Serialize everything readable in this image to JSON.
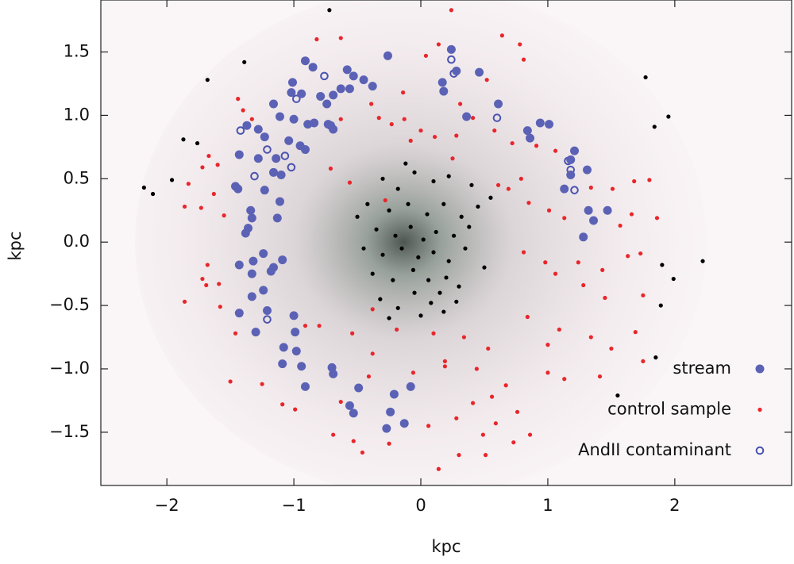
{
  "chart_data": {
    "type": "scatter",
    "xlabel": "kpc",
    "ylabel": "kpc",
    "xlim": [
      -2.52,
      2.92
    ],
    "ylim": [
      -1.92,
      1.91
    ],
    "xticks": [
      {
        "value": -2,
        "label": "−2"
      },
      {
        "value": -1,
        "label": "−1"
      },
      0,
      1,
      2
    ],
    "yticks": [
      {
        "value": -1.5,
        "label": "−1.5"
      },
      {
        "value": -1.0,
        "label": "−1.0"
      },
      {
        "value": -0.5,
        "label": "−0.5"
      },
      {
        "value": 0.0,
        "label": "0.0"
      },
      0.5,
      {
        "value": 1.0,
        "label": "1.0"
      },
      1.5
    ],
    "legend": "lower right",
    "series": [
      {
        "name": "stream",
        "color": "#5b62b5",
        "marker": "circle",
        "x": [
          -0.26,
          -0.91,
          -0.85,
          -0.58,
          -0.53,
          -0.45,
          -0.38,
          -1.01,
          0.17,
          0.18,
          -1.02,
          -0.94,
          -0.79,
          -0.74,
          -0.63,
          -0.56,
          -0.69,
          -1.16,
          -1.11,
          -1.0,
          -0.89,
          -0.84,
          -0.73,
          -0.71,
          -0.69,
          -1.37,
          -1.28,
          -1.23,
          -1.04,
          -0.95,
          -0.91,
          -1.43,
          -1.28,
          -1.14,
          -1.1,
          -1.16,
          -1.46,
          -1.44,
          -1.23,
          -1.11,
          -1.34,
          -1.33,
          -1.13,
          -1.36,
          -1.38,
          -1.24,
          -1.32,
          -1.43,
          -1.09,
          -1.16,
          -1.18,
          -1.33,
          -1.24,
          -1.33,
          -1.21,
          -1.43,
          -1.3,
          -1.0,
          -0.99,
          -1.08,
          -0.98,
          -1.09,
          -0.94,
          -0.7,
          -0.69,
          -0.91,
          -0.49,
          -0.56,
          -0.53,
          -0.21,
          -0.08,
          -0.24,
          -0.13,
          -0.27,
          0.24,
          0.28,
          0.46,
          0.61,
          0.36,
          0.84,
          0.94,
          1.01,
          0.86,
          1.21,
          1.18,
          1.18,
          1.31,
          1.13,
          1.32,
          1.36,
          1.28,
          1.47
        ],
        "y": [
          1.47,
          1.43,
          1.38,
          1.36,
          1.31,
          1.28,
          1.23,
          1.26,
          1.26,
          1.19,
          1.18,
          1.17,
          1.15,
          1.09,
          1.21,
          1.21,
          1.16,
          1.09,
          0.99,
          0.97,
          0.93,
          0.94,
          0.93,
          0.92,
          0.89,
          0.92,
          0.89,
          0.83,
          0.8,
          0.76,
          0.73,
          0.69,
          0.66,
          0.66,
          0.53,
          0.55,
          0.44,
          0.42,
          0.41,
          0.32,
          0.25,
          0.19,
          0.19,
          0.11,
          0.07,
          -0.09,
          -0.15,
          -0.18,
          -0.14,
          -0.2,
          -0.23,
          -0.25,
          -0.38,
          -0.43,
          -0.54,
          -0.56,
          -0.71,
          -0.58,
          -0.71,
          -0.83,
          -0.86,
          -0.96,
          -0.98,
          -0.99,
          -1.04,
          -1.14,
          -1.15,
          -1.29,
          -1.35,
          -1.2,
          -1.14,
          -1.34,
          -1.43,
          -1.47,
          1.52,
          1.35,
          1.34,
          1.09,
          0.99,
          0.88,
          0.94,
          0.93,
          0.82,
          0.72,
          0.65,
          0.53,
          0.57,
          0.42,
          0.25,
          0.17,
          0.04,
          0.25
        ]
      },
      {
        "name": "control sample",
        "color": "#e8262b",
        "marker": "dot",
        "x": [
          0.24,
          0.64,
          -0.82,
          -0.63,
          0.78,
          0.81,
          0.04,
          0.14,
          0.52,
          -0.39,
          -0.14,
          0.41,
          -1.44,
          -1.4,
          -0.33,
          -0.23,
          -0.13,
          0.0,
          -0.08,
          0.11,
          0.28,
          0.58,
          0.72,
          0.91,
          1.06,
          -1.67,
          -1.6,
          -1.72,
          -1.83,
          -1.63,
          -0.71,
          -0.56,
          -0.28,
          0.25,
          0.61,
          0.69,
          0.79,
          1.34,
          1.51,
          1.68,
          1.8,
          -1.86,
          -1.73,
          -1.55,
          0.85,
          1.01,
          1.13,
          1.57,
          1.66,
          1.86,
          -1.68,
          -1.72,
          -1.59,
          0.81,
          0.98,
          1.06,
          1.24,
          1.43,
          1.63,
          1.73,
          1.28,
          1.45,
          1.75,
          -1.86,
          -1.58,
          -1.46,
          -0.91,
          -0.8,
          -0.54,
          -0.38,
          -0.19,
          0.1,
          0.34,
          0.53,
          0.84,
          1.09,
          1.0,
          1.34,
          1.5,
          1.69,
          1.75,
          -1.5,
          -1.25,
          -1.09,
          -0.99,
          -0.63,
          -0.41,
          -0.06,
          0.19,
          0.56,
          0.76,
          1.0,
          1.13,
          1.41,
          -0.69,
          -0.53,
          -0.46,
          -0.25,
          0.14,
          0.3,
          0.49,
          0.51,
          0.59,
          0.73,
          0.86,
          0.41,
          0.28,
          0.06,
          -0.38,
          0.19,
          0.44,
          0.67,
          -1.69,
          -1.33,
          -0.63,
          0.31
        ],
        "y": [
          1.83,
          1.63,
          1.6,
          1.61,
          1.56,
          1.44,
          1.47,
          1.56,
          1.28,
          1.09,
          1.18,
          0.98,
          1.13,
          1.04,
          0.98,
          0.93,
          0.97,
          0.88,
          0.8,
          0.83,
          0.84,
          0.88,
          0.78,
          0.76,
          0.72,
          0.68,
          0.61,
          0.59,
          0.46,
          0.38,
          0.58,
          0.47,
          0.33,
          0.66,
          0.45,
          0.42,
          0.5,
          0.43,
          0.42,
          0.48,
          0.49,
          0.28,
          0.27,
          0.21,
          0.31,
          0.25,
          0.19,
          0.13,
          0.22,
          0.19,
          -0.18,
          -0.29,
          -0.33,
          -0.08,
          -0.16,
          -0.25,
          -0.16,
          -0.22,
          -0.11,
          -0.09,
          -0.34,
          -0.44,
          -0.42,
          -0.47,
          -0.51,
          -0.72,
          -0.66,
          -0.66,
          -0.72,
          -0.53,
          -0.69,
          -0.72,
          -0.75,
          -0.84,
          -0.59,
          -0.69,
          -0.81,
          -0.75,
          -0.84,
          -0.71,
          -0.94,
          -1.1,
          -1.12,
          -1.28,
          -1.32,
          -1.26,
          -1.06,
          -1.03,
          -0.98,
          -1.22,
          -1.34,
          -1.03,
          -1.08,
          -1.06,
          -1.52,
          -1.57,
          -1.66,
          -1.59,
          -1.79,
          -1.68,
          -1.52,
          -1.68,
          -1.43,
          -1.58,
          -1.52,
          -1.27,
          -1.39,
          -1.45,
          -0.88,
          -0.94,
          -1.0,
          -1.13,
          -0.34,
          0.97,
          0.97,
          1.09
        ]
      },
      {
        "name": "AndII contaminant",
        "color": "#4a52b0",
        "marker": "ring",
        "x": [
          -0.76,
          -0.98,
          0.24,
          0.26,
          0.6,
          -1.42,
          -1.21,
          -1.31,
          -1.07,
          -1.02,
          1.16,
          1.18,
          1.21,
          -1.21
        ],
        "y": [
          1.31,
          1.13,
          1.44,
          1.33,
          0.98,
          0.88,
          0.73,
          0.52,
          0.68,
          0.59,
          0.64,
          0.57,
          0.41,
          -0.61
        ]
      },
      {
        "color": "#000000",
        "marker": "dot",
        "x": [
          -0.72,
          -1.39,
          -1.68,
          -1.87,
          -1.76,
          -2.18,
          -2.11,
          -1.96,
          1.77,
          1.84,
          1.95,
          2.22,
          1.9,
          1.99,
          1.89,
          1.85,
          1.55,
          -0.3,
          -0.18,
          -0.05,
          0.1,
          0.22,
          0.4,
          -0.42,
          -0.25,
          -0.1,
          0.05,
          0.18,
          0.32,
          0.45,
          -0.35,
          -0.2,
          -0.08,
          0.02,
          0.12,
          0.26,
          0.38,
          -0.45,
          -0.3,
          -0.15,
          -0.02,
          0.1,
          0.22,
          0.35,
          -0.38,
          -0.22,
          -0.06,
          0.06,
          0.2,
          0.3,
          -0.32,
          -0.18,
          -0.05,
          0.08,
          0.18,
          0.28,
          -0.25,
          0.0,
          0.15,
          -0.5,
          0.5,
          0.55,
          -0.12
        ],
        "y": [
          1.83,
          1.42,
          1.28,
          0.81,
          0.78,
          0.43,
          0.38,
          0.49,
          1.3,
          0.91,
          0.99,
          -0.15,
          -0.18,
          -0.29,
          -0.5,
          -0.91,
          -1.21,
          0.5,
          0.42,
          0.55,
          0.48,
          0.52,
          0.45,
          0.3,
          0.25,
          0.3,
          0.22,
          0.3,
          0.2,
          0.28,
          0.1,
          0.05,
          0.12,
          0.02,
          0.08,
          0.05,
          0.12,
          -0.05,
          -0.1,
          -0.05,
          -0.12,
          -0.08,
          -0.15,
          -0.05,
          -0.25,
          -0.3,
          -0.22,
          -0.3,
          -0.28,
          -0.35,
          -0.45,
          -0.52,
          -0.4,
          -0.48,
          -0.55,
          -0.47,
          -0.6,
          -0.58,
          -0.4,
          0.2,
          -0.2,
          0.35,
          0.62
        ]
      }
    ]
  }
}
